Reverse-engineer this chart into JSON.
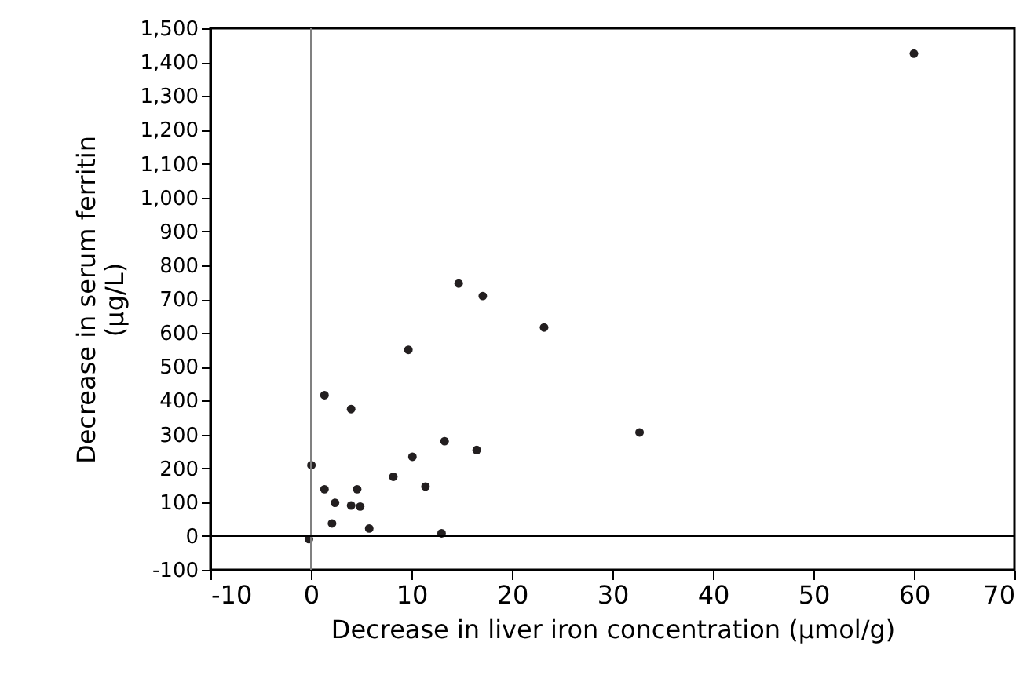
{
  "chart_data": {
    "type": "scatter",
    "xlabel": "Decrease in liver iron concentration (μmol/g)",
    "ylabel": "Decrease in serum ferritin\n(μg/L)",
    "x": [
      60,
      14.7,
      17.1,
      23.2,
      9.7,
      1.35,
      4.0,
      32.7,
      13.3,
      16.5,
      10.1,
      0.05,
      8.2,
      11.4,
      1.35,
      4.6,
      2.4,
      4.0,
      4.9,
      2.1,
      5.8,
      13.0,
      -0.2
    ],
    "series": [
      {
        "color": "#231f20",
        "values": [
          1425,
          746,
          709,
          616,
          550,
          416,
          375,
          306,
          280,
          254,
          234,
          209,
          175,
          146,
          138,
          138,
          98,
          90,
          87,
          37,
          22,
          8,
          -9
        ]
      }
    ],
    "xlim": [
      -10,
      70
    ],
    "xticks": [
      -10,
      0,
      10,
      20,
      30,
      40,
      50,
      60,
      70
    ],
    "ylim": [
      -100,
      1500
    ],
    "yticks": [
      -100,
      0,
      100,
      200,
      300,
      400,
      500,
      600,
      700,
      800,
      900,
      {
        "value": 1000,
        "label": "1,000"
      },
      {
        "value": 1100,
        "label": "1,100"
      },
      {
        "value": 1200,
        "label": "1,200"
      },
      {
        "value": 1300,
        "label": "1,300"
      },
      {
        "value": 1400,
        "label": "1,400"
      },
      {
        "value": 1500,
        "label": "1,500"
      }
    ],
    "ref_lines": [
      {
        "axis": "x",
        "value": 0,
        "color": "#808080"
      },
      {
        "axis": "y",
        "value": 0,
        "color": "#000000"
      }
    ],
    "grid": false,
    "marker": "circle"
  }
}
